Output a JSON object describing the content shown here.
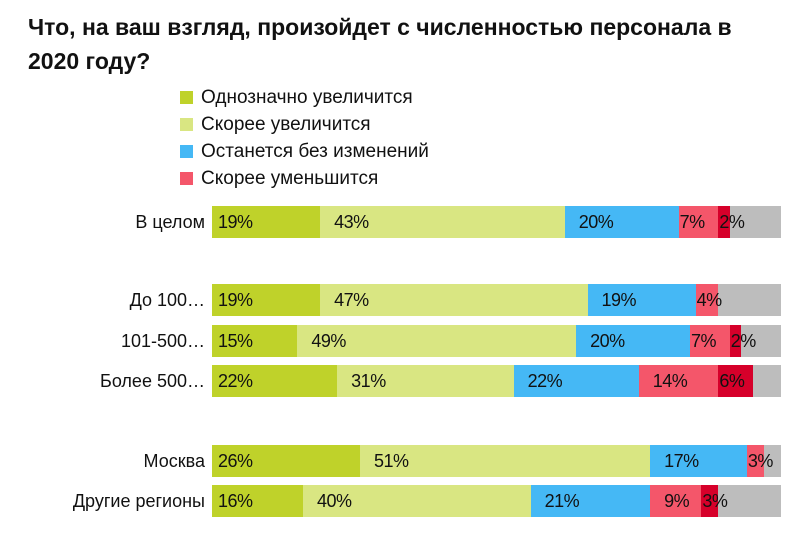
{
  "chart_data": {
    "type": "bar",
    "orientation": "horizontal-stacked-100",
    "title": "Что, на ваш взгляд, произойдет с численностью персонала в 2020 году?",
    "legend_placement": "top",
    "colors": [
      "#bfd22a",
      "#d9e682",
      "#45b8f5",
      "#f4566a",
      "#d6002a"
    ],
    "remainder_color": "#bdbdbd",
    "series": [
      {
        "name": "Однозначно увеличится",
        "values": [
          19,
          19,
          15,
          22,
          26,
          16
        ]
      },
      {
        "name": "Скорее увеличится",
        "values": [
          43,
          47,
          49,
          31,
          51,
          40
        ]
      },
      {
        "name": "Останется без изменений",
        "values": [
          20,
          19,
          20,
          22,
          17,
          21
        ]
      },
      {
        "name": "Скорее уменьшится",
        "values": [
          7,
          4,
          7,
          14,
          3,
          9
        ]
      },
      {
        "name": "",
        "values": [
          2,
          0,
          2,
          6,
          0,
          3
        ]
      }
    ],
    "categories": [
      "В целом",
      "До 100…",
      "101-500…",
      "Более 500…",
      "Москва",
      "Другие регионы"
    ],
    "xlim": [
      0,
      100
    ],
    "grid": false
  }
}
